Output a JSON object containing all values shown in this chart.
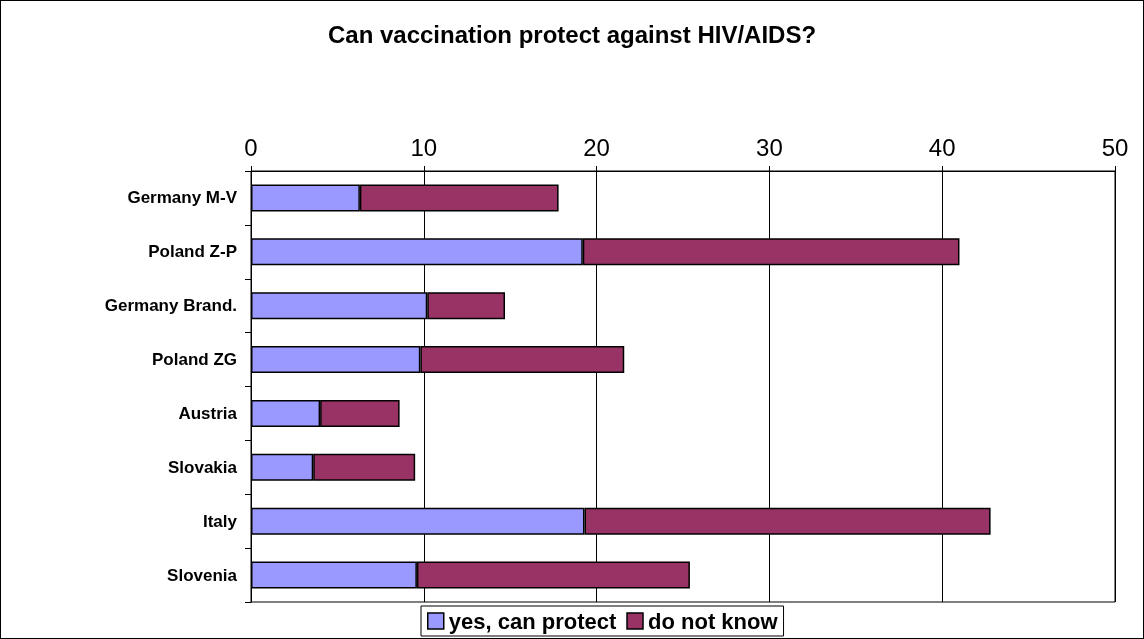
{
  "chart_data": {
    "type": "bar",
    "title": "Can vaccination protect against HIV/AIDS?",
    "orientation": "horizontal",
    "stacked": true,
    "categories": [
      "Germany M-V",
      "Poland Z-P",
      "Germany Brand.",
      "Poland ZG",
      "Austria",
      "Slovakia",
      "Italy",
      "Slovenia"
    ],
    "series": [
      {
        "name": "yes, can protect",
        "color": "#9999ff",
        "values": [
          6.3,
          19.2,
          10.2,
          9.8,
          4.0,
          3.6,
          19.3,
          9.6
        ]
      },
      {
        "name": "do not know",
        "color": "#993366",
        "values": [
          11.5,
          21.8,
          4.5,
          11.8,
          4.6,
          5.9,
          23.5,
          15.8
        ]
      }
    ],
    "xlim": [
      0,
      50
    ],
    "xticks": [
      0,
      10,
      20,
      30,
      40,
      50
    ],
    "grid": "x",
    "legend": "bottom"
  }
}
